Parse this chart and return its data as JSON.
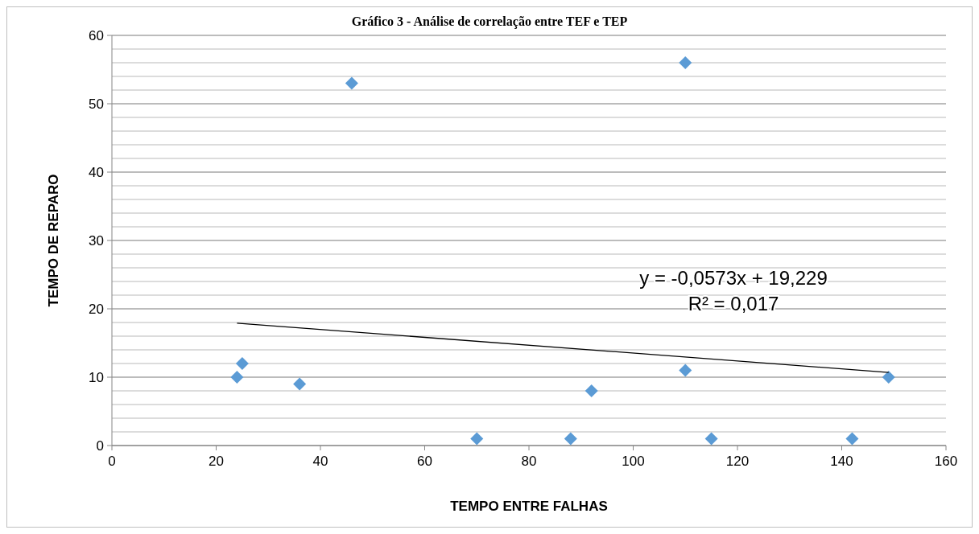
{
  "chart_data": {
    "type": "scatter",
    "title": "Gráfico 3 - Análise de correlação entre TEF e TEP",
    "xlabel": "TEMPO ENTRE FALHAS",
    "ylabel": "TEMPO DE REPARO",
    "xlim": [
      0,
      160
    ],
    "xticks": [
      0,
      20,
      40,
      60,
      80,
      100,
      120,
      140,
      160
    ],
    "ylim": [
      0,
      60
    ],
    "yticks": [
      0,
      {
        "value": 2,
        "label": null
      },
      {
        "value": 4,
        "label": null
      },
      {
        "value": 6,
        "label": null
      },
      {
        "value": 8,
        "label": null
      },
      10,
      {
        "value": 12,
        "label": null
      },
      {
        "value": 14,
        "label": null
      },
      {
        "value": 16,
        "label": null
      },
      {
        "value": 18,
        "label": null
      },
      20,
      {
        "value": 22,
        "label": null
      },
      {
        "value": 24,
        "label": null
      },
      {
        "value": 26,
        "label": null
      },
      {
        "value": 28,
        "label": null
      },
      30,
      {
        "value": 32,
        "label": null
      },
      {
        "value": 34,
        "label": null
      },
      {
        "value": 36,
        "label": null
      },
      {
        "value": 38,
        "label": null
      },
      40,
      {
        "value": 42,
        "label": null
      },
      {
        "value": 44,
        "label": null
      },
      {
        "value": 46,
        "label": null
      },
      {
        "value": 48,
        "label": null
      },
      50,
      {
        "value": 52,
        "label": null
      },
      {
        "value": 54,
        "label": null
      },
      {
        "value": 56,
        "label": null
      },
      {
        "value": 58,
        "label": null
      },
      60
    ],
    "grid": "y",
    "marker": "diamond",
    "series": [
      {
        "type": "scatter",
        "color": "#5b9bd5",
        "x": [
          24,
          25,
          36,
          46,
          70,
          88,
          92,
          110,
          110,
          115,
          142,
          149
        ],
        "values": [
          10,
          12,
          9,
          53,
          1,
          1,
          8,
          56,
          11,
          1,
          1,
          10
        ]
      },
      {
        "type": "line",
        "color": "#000000",
        "x": [
          24,
          149
        ],
        "values": [
          17.9,
          10.7
        ],
        "marker": "none",
        "line_style": "solid"
      }
    ],
    "annotations": [
      "y = -0,0573x + 19,229",
      "R² = 0,017"
    ]
  }
}
